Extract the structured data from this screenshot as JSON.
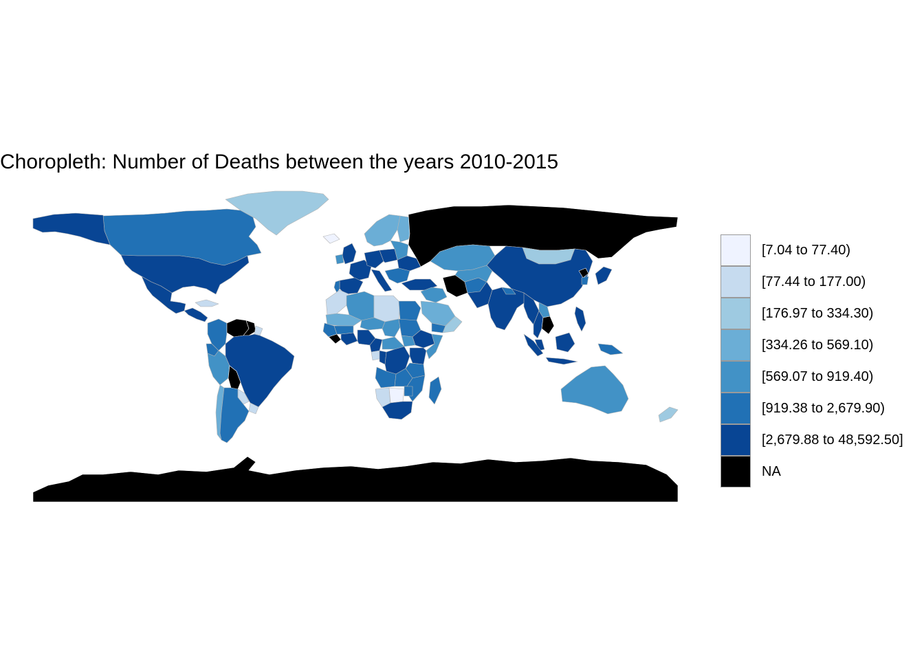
{
  "title": "Choropleth: Number of Deaths between the years 2010-2015",
  "legend": {
    "items": [
      {
        "label": "[7.04 to 77.40)",
        "color": "#eff3ff"
      },
      {
        "label": "[77.44 to 177.00)",
        "color": "#c6dbef"
      },
      {
        "label": "[176.97 to 334.30)",
        "color": "#9ecae1"
      },
      {
        "label": "[334.26 to 569.10)",
        "color": "#6baed6"
      },
      {
        "label": "[569.07 to 919.40)",
        "color": "#4292c6"
      },
      {
        "label": "[919.38 to 2,679.90)",
        "color": "#2171b5"
      },
      {
        "label": "[2,679.88 to 48,592.50]",
        "color": "#084594"
      },
      {
        "label": "NA",
        "color": "#000000"
      }
    ]
  },
  "regions": [
    {
      "name": "Canada",
      "class": 5
    },
    {
      "name": "Alaska (United States)",
      "class": 6
    },
    {
      "name": "United States",
      "class": 6
    },
    {
      "name": "Mexico",
      "class": 6
    },
    {
      "name": "Greenland",
      "class": 2
    },
    {
      "name": "Guatemala / Honduras",
      "class": 6
    },
    {
      "name": "Cuba",
      "class": 1
    },
    {
      "name": "Colombia",
      "class": 5
    },
    {
      "name": "Venezuela",
      "class": 7
    },
    {
      "name": "Guyana / Suriname",
      "class": 7
    },
    {
      "name": "French Guiana",
      "class": 1
    },
    {
      "name": "Ecuador",
      "class": 5
    },
    {
      "name": "Peru",
      "class": 4
    },
    {
      "name": "Brazil",
      "class": 6
    },
    {
      "name": "Bolivia",
      "class": 7
    },
    {
      "name": "Paraguay",
      "class": 1
    },
    {
      "name": "Uruguay",
      "class": 1
    },
    {
      "name": "Chile",
      "class": 3
    },
    {
      "name": "Argentina",
      "class": 5
    },
    {
      "name": "Iceland",
      "class": 0
    },
    {
      "name": "United Kingdom",
      "class": 6
    },
    {
      "name": "Ireland",
      "class": 4
    },
    {
      "name": "Scandinavia",
      "class": 3
    },
    {
      "name": "Finland",
      "class": 3
    },
    {
      "name": "France",
      "class": 6
    },
    {
      "name": "Spain",
      "class": 6
    },
    {
      "name": "Portugal",
      "class": 5
    },
    {
      "name": "Germany",
      "class": 6
    },
    {
      "name": "Italy",
      "class": 6
    },
    {
      "name": "Poland",
      "class": 6
    },
    {
      "name": "Baltics / Belarus",
      "class": 4
    },
    {
      "name": "Ukraine",
      "class": 6
    },
    {
      "name": "Balkans",
      "class": 5
    },
    {
      "name": "Turkey",
      "class": 6
    },
    {
      "name": "Russia",
      "class": 7
    },
    {
      "name": "Kazakhstan",
      "class": 4
    },
    {
      "name": "Mongolia",
      "class": 2
    },
    {
      "name": "China",
      "class": 6
    },
    {
      "name": "Japan",
      "class": 6
    },
    {
      "name": "North Korea",
      "class": 7
    },
    {
      "name": "South Korea",
      "class": 5
    },
    {
      "name": "Iran",
      "class": 7
    },
    {
      "name": "Iraq / Syria",
      "class": 4
    },
    {
      "name": "Saudi Arabia",
      "class": 3
    },
    {
      "name": "Yemen",
      "class": 5
    },
    {
      "name": "Oman",
      "class": 2
    },
    {
      "name": "Afghanistan",
      "class": 5
    },
    {
      "name": "Pakistan",
      "class": 6
    },
    {
      "name": "Central Asia",
      "class": 4
    },
    {
      "name": "India",
      "class": 6
    },
    {
      "name": "Nepal",
      "class": 5
    },
    {
      "name": "Bangladesh / Myanmar",
      "class": 6
    },
    {
      "name": "Thailand",
      "class": 6
    },
    {
      "name": "Laos",
      "class": 4
    },
    {
      "name": "Vietnam / Cambodia",
      "class": 7
    },
    {
      "name": "Malaysia",
      "class": 6
    },
    {
      "name": "Indonesia (Sumatra)",
      "class": 6
    },
    {
      "name": "Indonesia (Java)",
      "class": 6
    },
    {
      "name": "Indonesia (Borneo)",
      "class": 6
    },
    {
      "name": "Philippines",
      "class": 6
    },
    {
      "name": "Papua New Guinea",
      "class": 5
    },
    {
      "name": "Australia",
      "class": 4
    },
    {
      "name": "New Zealand",
      "class": 2
    },
    {
      "name": "Morocco / Western Sahara",
      "class": 1
    },
    {
      "name": "Algeria",
      "class": 4
    },
    {
      "name": "Libya",
      "class": 1
    },
    {
      "name": "Egypt",
      "class": 5
    },
    {
      "name": "Mauritania / Mali",
      "class": 3
    },
    {
      "name": "Niger",
      "class": 4
    },
    {
      "name": "Chad",
      "class": 4
    },
    {
      "name": "Sudan",
      "class": 5
    },
    {
      "name": "South Sudan",
      "class": 4
    },
    {
      "name": "Ethiopia",
      "class": 6
    },
    {
      "name": "Somalia",
      "class": 4
    },
    {
      "name": "Senegal / Guinea",
      "class": 5
    },
    {
      "name": "Sierra Leone / Liberia",
      "class": 7
    },
    {
      "name": "Ivory Coast / Ghana",
      "class": 6
    },
    {
      "name": "Burkina Faso",
      "class": 5
    },
    {
      "name": "Nigeria",
      "class": 6
    },
    {
      "name": "Cameroon",
      "class": 6
    },
    {
      "name": "Central African Republic",
      "class": 4
    },
    {
      "name": "Gabon",
      "class": 1
    },
    {
      "name": "Republic of Congo",
      "class": 6
    },
    {
      "name": "DR Congo",
      "class": 6
    },
    {
      "name": "Uganda / Kenya",
      "class": 6
    },
    {
      "name": "Tanzania",
      "class": 5
    },
    {
      "name": "Angola",
      "class": 5
    },
    {
      "name": "Zambia",
      "class": 5
    },
    {
      "name": "Malawi / Mozambique",
      "class": 5
    },
    {
      "name": "Namibia",
      "class": 1
    },
    {
      "name": "Botswana",
      "class": 0
    },
    {
      "name": "Zimbabwe",
      "class": 5
    },
    {
      "name": "South Africa",
      "class": 6
    },
    {
      "name": "Madagascar",
      "class": 5
    },
    {
      "name": "Antarctica",
      "class": 7
    }
  ]
}
